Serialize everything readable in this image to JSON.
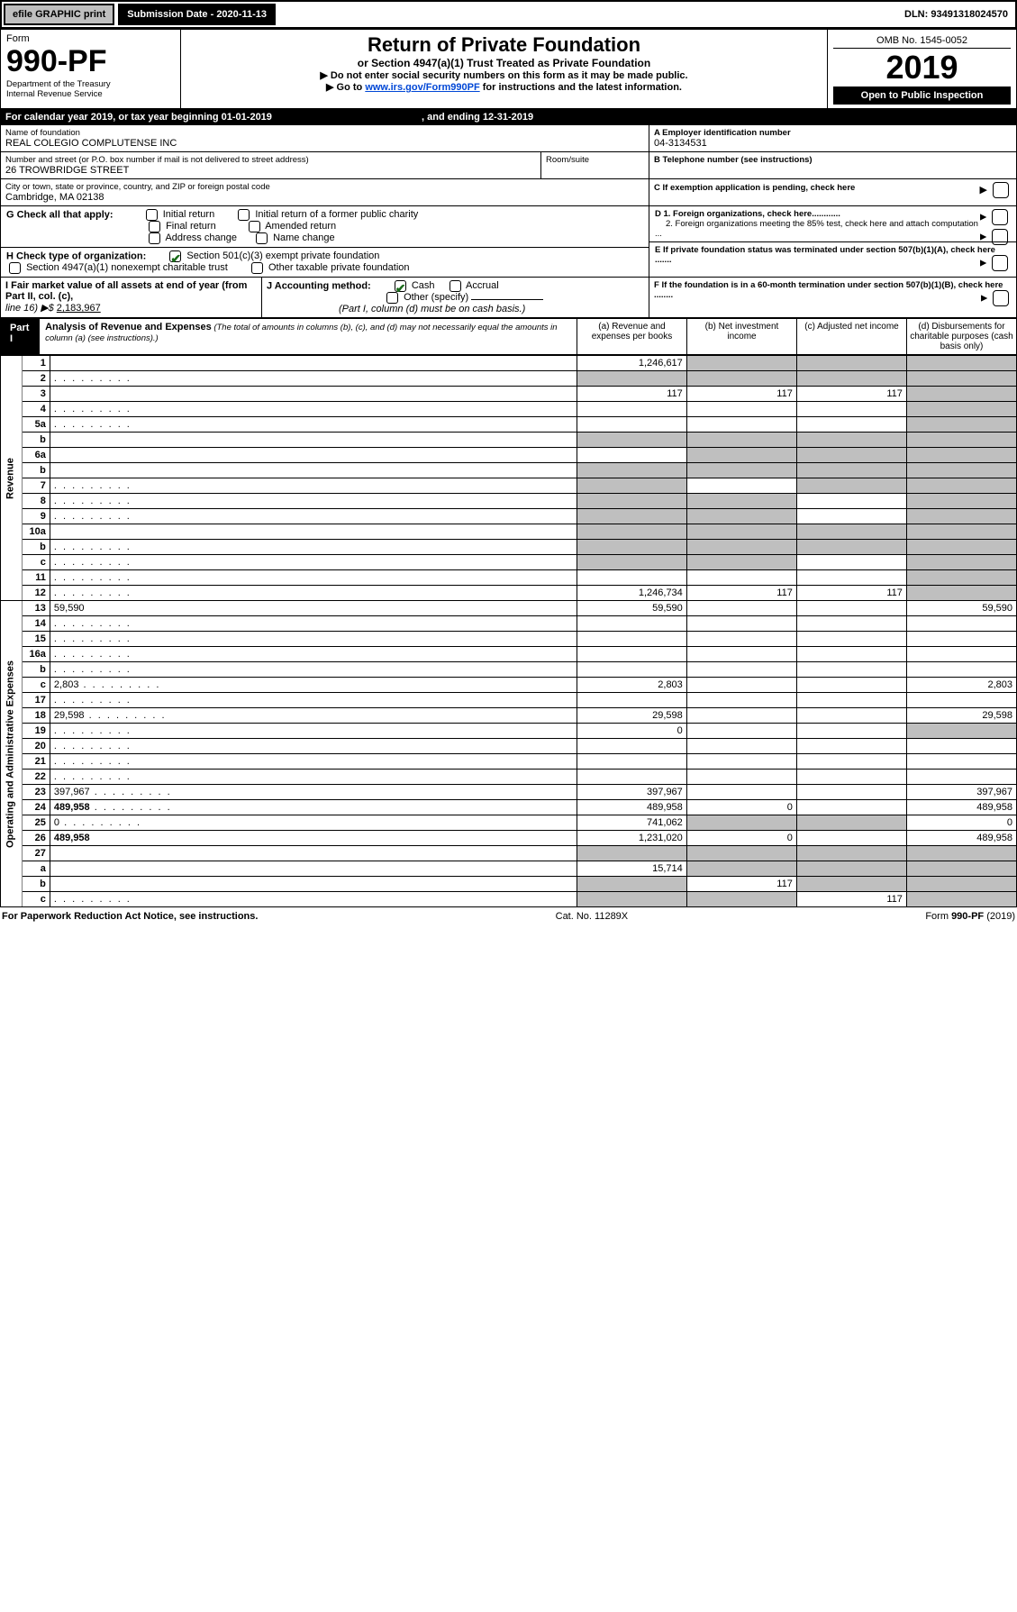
{
  "topbar": {
    "efile": "efile GRAPHIC print",
    "submission": "Submission Date - 2020-11-13",
    "dln": "DLN: 93491318024570"
  },
  "header": {
    "form_label": "Form",
    "form_number": "990-PF",
    "dept": "Department of the Treasury",
    "irs": "Internal Revenue Service",
    "title": "Return of Private Foundation",
    "subtitle": "or Section 4947(a)(1) Trust Treated as Private Foundation",
    "note1": "▶ Do not enter social security numbers on this form as it may be made public.",
    "note2_prefix": "▶ Go to ",
    "note2_link": "www.irs.gov/Form990PF",
    "note2_suffix": " for instructions and the latest information.",
    "omb": "OMB No. 1545-0052",
    "year": "2019",
    "open_public": "Open to Public Inspection"
  },
  "cal": {
    "line": "For calendar year 2019, or tax year beginning 01-01-2019",
    "ending": ", and ending 12-31-2019"
  },
  "org": {
    "name_label": "Name of foundation",
    "name": "REAL COLEGIO COMPLUTENSE INC",
    "addr_label": "Number and street (or P.O. box number if mail is not delivered to street address)",
    "addr": "26 TROWBRIDGE STREET",
    "room_label": "Room/suite",
    "city_label": "City or town, state or province, country, and ZIP or foreign postal code",
    "city": "Cambridge, MA  02138",
    "a_label": "A Employer identification number",
    "a_val": "04-3134531",
    "b_label": "B Telephone number (see instructions)",
    "c_label": "C If exemption application is pending, check here",
    "d1": "D 1. Foreign organizations, check here............",
    "d2": "2. Foreign organizations meeting the 85% test, check here and attach computation ...",
    "e_label": "E  If private foundation status was terminated under section 507(b)(1)(A), check here .......",
    "f_label": "F  If the foundation is in a 60-month termination under section 507(b)(1)(B), check here ........"
  },
  "g": {
    "label": "G Check all that apply:",
    "opts": [
      "Initial return",
      "Initial return of a former public charity",
      "Final return",
      "Amended return",
      "Address change",
      "Name change"
    ]
  },
  "h": {
    "label": "H Check type of organization:",
    "o1": "Section 501(c)(3) exempt private foundation",
    "o2": "Section 4947(a)(1) nonexempt charitable trust",
    "o3": "Other taxable private foundation"
  },
  "i": {
    "label": "I Fair market value of all assets at end of year (from Part II, col. (c),",
    "line16": "line 16) ▶$",
    "val": "2,183,967"
  },
  "j": {
    "label": "J Accounting method:",
    "cash": "Cash",
    "accrual": "Accrual",
    "other": "Other (specify)",
    "note": "(Part I, column (d) must be on cash basis.)"
  },
  "part1": {
    "label": "Part I",
    "title": "Analysis of Revenue and Expenses",
    "title_note": " (The total of amounts in columns (b), (c), and (d) may not necessarily equal the amounts in column (a) (see instructions).)",
    "col_a": "(a)   Revenue and expenses per books",
    "col_b": "(b)   Net investment income",
    "col_c": "(c)   Adjusted net income",
    "col_d": "(d)   Disbursements for charitable purposes (cash basis only)"
  },
  "sections": {
    "revenue": "Revenue",
    "expenses": "Operating and Administrative Expenses"
  },
  "rows": [
    {
      "n": "1",
      "d": "",
      "a": "1,246,617",
      "b": "",
      "c": "",
      "grey": [
        "b",
        "c",
        "d"
      ]
    },
    {
      "n": "2",
      "d": "",
      "dots": true,
      "a": "",
      "b": "",
      "c": "",
      "grey": [
        "a",
        "b",
        "c",
        "d"
      ]
    },
    {
      "n": "3",
      "d": "",
      "a": "117",
      "b": "117",
      "c": "117",
      "grey": [
        "d"
      ]
    },
    {
      "n": "4",
      "d": "",
      "dots": true,
      "a": "",
      "b": "",
      "c": "",
      "grey": [
        "d"
      ]
    },
    {
      "n": "5a",
      "d": "",
      "dots": true,
      "a": "",
      "b": "",
      "c": "",
      "grey": [
        "d"
      ]
    },
    {
      "n": "b",
      "d": "",
      "a": "",
      "b": "",
      "c": "",
      "grey": [
        "a",
        "b",
        "c",
        "d"
      ]
    },
    {
      "n": "6a",
      "d": "",
      "a": "",
      "b": "",
      "c": "",
      "grey": [
        "b",
        "c",
        "d"
      ]
    },
    {
      "n": "b",
      "d": "",
      "a": "",
      "b": "",
      "c": "",
      "grey": [
        "a",
        "b",
        "c",
        "d"
      ]
    },
    {
      "n": "7",
      "d": "",
      "dots": true,
      "a": "",
      "b": "",
      "c": "",
      "grey": [
        "a",
        "c",
        "d"
      ]
    },
    {
      "n": "8",
      "d": "",
      "dots": true,
      "a": "",
      "b": "",
      "c": "",
      "grey": [
        "a",
        "b",
        "d"
      ]
    },
    {
      "n": "9",
      "d": "",
      "dots": true,
      "a": "",
      "b": "",
      "c": "",
      "grey": [
        "a",
        "b",
        "d"
      ]
    },
    {
      "n": "10a",
      "d": "",
      "a": "",
      "b": "",
      "c": "",
      "grey": [
        "a",
        "b",
        "c",
        "d"
      ]
    },
    {
      "n": "b",
      "d": "",
      "dots": true,
      "a": "",
      "b": "",
      "c": "",
      "grey": [
        "a",
        "b",
        "c",
        "d"
      ]
    },
    {
      "n": "c",
      "d": "",
      "dots": true,
      "a": "",
      "b": "",
      "c": "",
      "grey": [
        "a",
        "b",
        "d"
      ]
    },
    {
      "n": "11",
      "d": "",
      "dots": true,
      "a": "",
      "b": "",
      "c": "",
      "grey": [
        "d"
      ]
    },
    {
      "n": "12",
      "d": "",
      "dots": true,
      "bold": true,
      "a": "1,246,734",
      "b": "117",
      "c": "117",
      "grey": [
        "d"
      ]
    },
    {
      "n": "13",
      "d": "59,590",
      "a": "59,590",
      "b": "",
      "c": ""
    },
    {
      "n": "14",
      "d": "",
      "dots": true,
      "a": "",
      "b": "",
      "c": ""
    },
    {
      "n": "15",
      "d": "",
      "dots": true,
      "a": "",
      "b": "",
      "c": ""
    },
    {
      "n": "16a",
      "d": "",
      "dots": true,
      "a": "",
      "b": "",
      "c": ""
    },
    {
      "n": "b",
      "d": "",
      "dots": true,
      "a": "",
      "b": "",
      "c": ""
    },
    {
      "n": "c",
      "d": "2,803",
      "dots": true,
      "a": "2,803",
      "b": "",
      "c": ""
    },
    {
      "n": "17",
      "d": "",
      "dots": true,
      "a": "",
      "b": "",
      "c": ""
    },
    {
      "n": "18",
      "d": "29,598",
      "dots": true,
      "a": "29,598",
      "b": "",
      "c": ""
    },
    {
      "n": "19",
      "d": "",
      "dots": true,
      "a": "0",
      "b": "",
      "c": "",
      "grey": [
        "d"
      ]
    },
    {
      "n": "20",
      "d": "",
      "dots": true,
      "a": "",
      "b": "",
      "c": ""
    },
    {
      "n": "21",
      "d": "",
      "dots": true,
      "a": "",
      "b": "",
      "c": ""
    },
    {
      "n": "22",
      "d": "",
      "dots": true,
      "a": "",
      "b": "",
      "c": ""
    },
    {
      "n": "23",
      "d": "397,967",
      "dots": true,
      "a": "397,967",
      "b": "",
      "c": ""
    },
    {
      "n": "24",
      "d": "489,958",
      "dots": true,
      "bold": true,
      "a": "489,958",
      "b": "0",
      "c": ""
    },
    {
      "n": "25",
      "d": "0",
      "dots": true,
      "a": "741,062",
      "b": "",
      "c": "",
      "grey": [
        "b",
        "c"
      ]
    },
    {
      "n": "26",
      "d": "489,958",
      "bold": true,
      "a": "1,231,020",
      "b": "0",
      "c": ""
    },
    {
      "n": "27",
      "d": "",
      "a": "",
      "b": "",
      "c": "",
      "grey": [
        "a",
        "b",
        "c",
        "d"
      ]
    },
    {
      "n": "a",
      "d": "",
      "bold": true,
      "a": "15,714",
      "b": "",
      "c": "",
      "grey": [
        "b",
        "c",
        "d"
      ]
    },
    {
      "n": "b",
      "d": "",
      "bold": true,
      "a": "",
      "b": "117",
      "c": "",
      "grey": [
        "a",
        "c",
        "d"
      ]
    },
    {
      "n": "c",
      "d": "",
      "bold": true,
      "dots": true,
      "a": "",
      "b": "",
      "c": "117",
      "grey": [
        "a",
        "b",
        "d"
      ]
    }
  ],
  "footer": {
    "left": "For Paperwork Reduction Act Notice, see instructions.",
    "mid": "Cat. No. 11289X",
    "right": "Form 990-PF (2019)"
  }
}
